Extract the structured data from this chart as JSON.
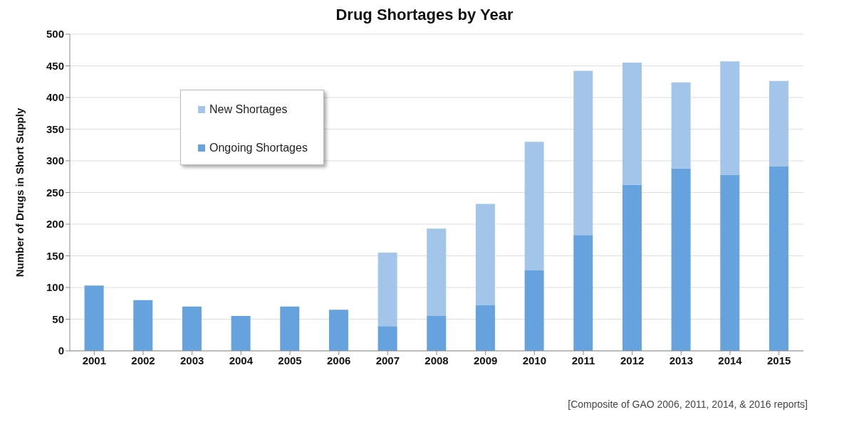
{
  "chart_data": {
    "type": "bar",
    "title": "Drug Shortages by Year",
    "ylabel": "Number of Drugs in Short Supply",
    "categories": [
      "2001",
      "2002",
      "2003",
      "2004",
      "2005",
      "2006",
      "2007",
      "2008",
      "2009",
      "2010",
      "2011",
      "2012",
      "2013",
      "2014",
      "2015"
    ],
    "series": [
      {
        "name": "Ongoing Shortages",
        "color": "#65a2de",
        "values": [
          103,
          80,
          70,
          55,
          70,
          65,
          39,
          55,
          72,
          127,
          183,
          262,
          288,
          278,
          291
        ]
      },
      {
        "name": "New Shortages",
        "color": "#a3c5ea",
        "values": [
          0,
          0,
          0,
          0,
          0,
          0,
          116,
          138,
          160,
          203,
          259,
          193,
          136,
          179,
          135
        ]
      }
    ],
    "stacked": true,
    "ylim": [
      0,
      500
    ],
    "yticks": [
      0,
      50,
      100,
      150,
      200,
      250,
      300,
      350,
      400,
      450,
      500
    ],
    "grid": "y",
    "legend": "top left",
    "annotations": [
      "[Composite of GAO 2006, 2011, 2014, & 2016 reports]"
    ]
  }
}
